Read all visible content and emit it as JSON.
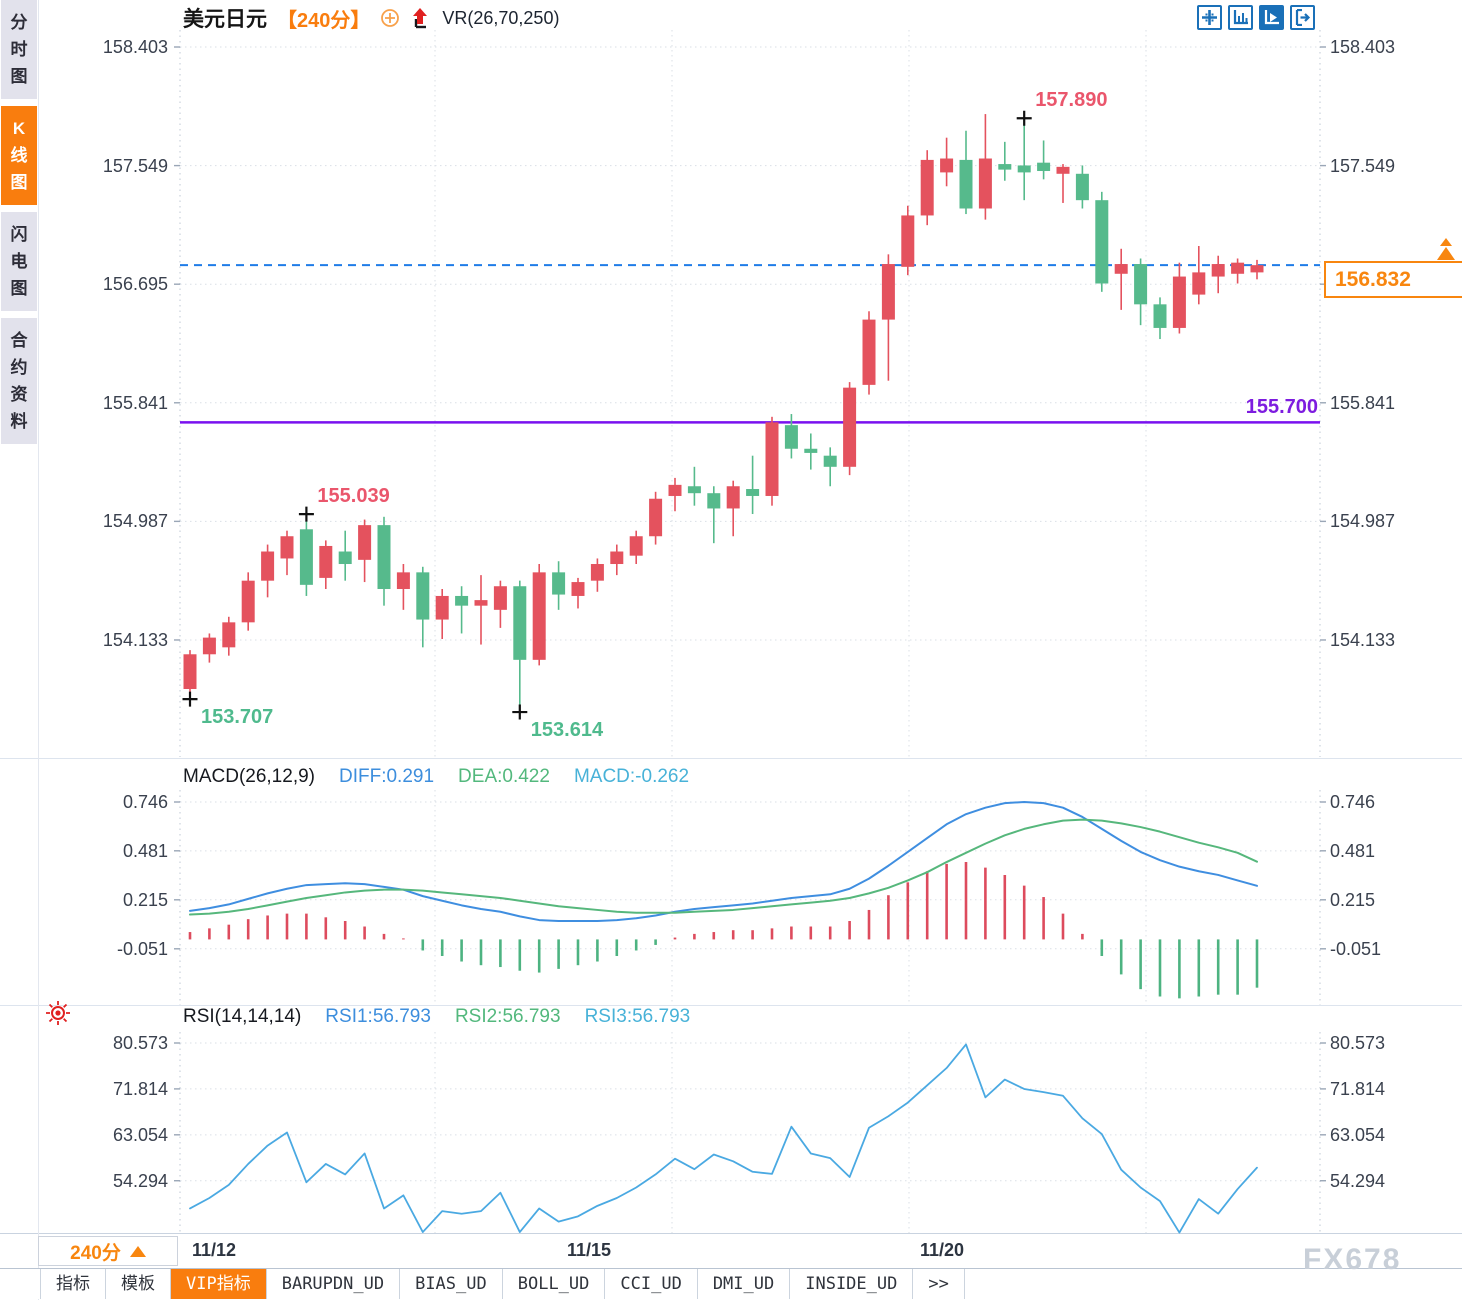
{
  "sidebar": {
    "items": [
      {
        "label": "分时图",
        "active": false
      },
      {
        "label": "K线图",
        "active": true
      },
      {
        "label": "闪电图",
        "active": false
      },
      {
        "label": "合约资料",
        "active": false
      }
    ]
  },
  "header": {
    "symbol": "美元日元",
    "period": "【240分】",
    "overlay_indicator": "VR(26,70,250)"
  },
  "toolbar": {
    "icons": [
      "crosshair-icon",
      "axis-bars-icon",
      "axis-play-icon",
      "exit-right-icon"
    ]
  },
  "chart_data": [
    {
      "type": "candlestick",
      "title": "美元日元 240分",
      "y_ticks": [
        "158.403",
        "157.549",
        "156.695",
        "155.841",
        "154.987",
        "154.133"
      ],
      "x_labels": [
        "11/12",
        "11/15",
        "11/20"
      ],
      "last_price": "156.832",
      "colors": {
        "up": "#e4525e",
        "down": "#56ba8c"
      },
      "hlines": [
        {
          "label": "155.700",
          "value": 155.7,
          "color": "#7a11ef",
          "style": "solid"
        },
        {
          "label": "156.832",
          "value": 156.832,
          "color": "#1f7ce8",
          "style": "dashed"
        }
      ],
      "markers": [
        {
          "candle": 0,
          "side": "low",
          "label": "153.707"
        },
        {
          "candle": 6,
          "side": "high",
          "label": "155.039"
        },
        {
          "candle": 17,
          "side": "low",
          "label": "153.614"
        },
        {
          "candle": 43,
          "side": "high",
          "label": "157.890"
        }
      ],
      "candles": [
        [
          153.78,
          154.06,
          153.707,
          154.03
        ],
        [
          154.03,
          154.18,
          153.97,
          154.15
        ],
        [
          154.08,
          154.3,
          154.02,
          154.26
        ],
        [
          154.26,
          154.62,
          154.2,
          154.56
        ],
        [
          154.56,
          154.82,
          154.44,
          154.77
        ],
        [
          154.72,
          154.92,
          154.6,
          154.88
        ],
        [
          154.93,
          155.039,
          154.45,
          154.53
        ],
        [
          154.58,
          154.85,
          154.5,
          154.81
        ],
        [
          154.77,
          154.92,
          154.56,
          154.68
        ],
        [
          154.71,
          155.0,
          154.55,
          154.96
        ],
        [
          154.96,
          155.02,
          154.38,
          154.5
        ],
        [
          154.5,
          154.68,
          154.35,
          154.62
        ],
        [
          154.62,
          154.66,
          154.08,
          154.28
        ],
        [
          154.28,
          154.5,
          154.14,
          154.45
        ],
        [
          154.45,
          154.52,
          154.18,
          154.38
        ],
        [
          154.38,
          154.6,
          154.1,
          154.42
        ],
        [
          154.35,
          154.56,
          154.22,
          154.52
        ],
        [
          154.52,
          154.56,
          153.614,
          153.99
        ],
        [
          153.99,
          154.68,
          153.95,
          154.62
        ],
        [
          154.62,
          154.7,
          154.35,
          154.46
        ],
        [
          154.45,
          154.58,
          154.36,
          154.55
        ],
        [
          154.56,
          154.72,
          154.48,
          154.68
        ],
        [
          154.68,
          154.82,
          154.6,
          154.77
        ],
        [
          154.74,
          154.92,
          154.68,
          154.88
        ],
        [
          154.88,
          155.2,
          154.82,
          155.15
        ],
        [
          155.17,
          155.3,
          155.06,
          155.25
        ],
        [
          155.24,
          155.38,
          155.1,
          155.19
        ],
        [
          155.19,
          155.24,
          154.83,
          155.08
        ],
        [
          155.08,
          155.28,
          154.88,
          155.24
        ],
        [
          155.22,
          155.46,
          155.04,
          155.17
        ],
        [
          155.17,
          155.74,
          155.1,
          155.7
        ],
        [
          155.68,
          155.76,
          155.44,
          155.51
        ],
        [
          155.51,
          155.62,
          155.36,
          155.48
        ],
        [
          155.46,
          155.52,
          155.24,
          155.38
        ],
        [
          155.38,
          155.99,
          155.32,
          155.95
        ],
        [
          155.97,
          156.5,
          155.9,
          156.44
        ],
        [
          156.44,
          156.91,
          156.0,
          156.84
        ],
        [
          156.82,
          157.26,
          156.76,
          157.19
        ],
        [
          157.19,
          157.66,
          157.12,
          157.59
        ],
        [
          157.5,
          157.75,
          157.4,
          157.6
        ],
        [
          157.59,
          157.8,
          157.2,
          157.24
        ],
        [
          157.24,
          157.92,
          157.16,
          157.6
        ],
        [
          157.56,
          157.72,
          157.44,
          157.52
        ],
        [
          157.55,
          157.89,
          157.3,
          157.5
        ],
        [
          157.57,
          157.73,
          157.45,
          157.51
        ],
        [
          157.49,
          157.56,
          157.28,
          157.54
        ],
        [
          157.49,
          157.55,
          157.24,
          157.3
        ],
        [
          157.3,
          157.36,
          156.64,
          156.7
        ],
        [
          156.77,
          156.95,
          156.51,
          156.84
        ],
        [
          156.84,
          156.88,
          156.4,
          156.55
        ],
        [
          156.55,
          156.6,
          156.3,
          156.38
        ],
        [
          156.38,
          156.85,
          156.34,
          156.75
        ],
        [
          156.62,
          156.97,
          156.55,
          156.78
        ],
        [
          156.75,
          156.9,
          156.63,
          156.84
        ],
        [
          156.77,
          156.88,
          156.7,
          156.85
        ],
        [
          156.78,
          156.87,
          156.73,
          156.832
        ]
      ]
    },
    {
      "type": "macd",
      "label": "MACD(26,12,9)",
      "diff_label": "DIFF:0.291",
      "dea_label": "DEA:0.422",
      "macd_label": "MACD:-0.262",
      "y_ticks": [
        "0.746",
        "0.481",
        "0.215",
        "-0.051"
      ],
      "colors": {
        "diff": "#3f8ee0",
        "dea": "#56b77c",
        "hist_up": "#dd4b5d",
        "hist_down": "#4db381"
      },
      "diff": [
        0.155,
        0.17,
        0.19,
        0.22,
        0.25,
        0.275,
        0.295,
        0.3,
        0.305,
        0.3,
        0.285,
        0.27,
        0.235,
        0.21,
        0.185,
        0.165,
        0.15,
        0.125,
        0.105,
        0.1,
        0.1,
        0.1,
        0.105,
        0.115,
        0.13,
        0.15,
        0.165,
        0.175,
        0.185,
        0.195,
        0.21,
        0.225,
        0.235,
        0.245,
        0.275,
        0.33,
        0.4,
        0.475,
        0.55,
        0.625,
        0.68,
        0.715,
        0.74,
        0.746,
        0.74,
        0.715,
        0.665,
        0.6,
        0.535,
        0.475,
        0.43,
        0.395,
        0.37,
        0.35,
        0.32,
        0.291
      ],
      "dea": [
        0.135,
        0.14,
        0.15,
        0.165,
        0.185,
        0.205,
        0.225,
        0.24,
        0.255,
        0.265,
        0.27,
        0.27,
        0.265,
        0.255,
        0.245,
        0.235,
        0.225,
        0.21,
        0.195,
        0.18,
        0.17,
        0.16,
        0.15,
        0.145,
        0.145,
        0.145,
        0.15,
        0.155,
        0.16,
        0.17,
        0.18,
        0.19,
        0.2,
        0.21,
        0.225,
        0.25,
        0.28,
        0.32,
        0.365,
        0.42,
        0.47,
        0.52,
        0.565,
        0.6,
        0.625,
        0.645,
        0.65,
        0.645,
        0.63,
        0.61,
        0.585,
        0.555,
        0.525,
        0.5,
        0.47,
        0.422
      ],
      "hist": [
        0.04,
        0.06,
        0.08,
        0.11,
        0.13,
        0.14,
        0.14,
        0.12,
        0.1,
        0.07,
        0.03,
        0.0,
        -0.06,
        -0.09,
        -0.12,
        -0.14,
        -0.15,
        -0.17,
        -0.18,
        -0.16,
        -0.14,
        -0.12,
        -0.09,
        -0.06,
        -0.03,
        0.01,
        0.03,
        0.04,
        0.05,
        0.05,
        0.06,
        0.07,
        0.07,
        0.07,
        0.1,
        0.16,
        0.24,
        0.31,
        0.37,
        0.41,
        0.42,
        0.39,
        0.35,
        0.292,
        0.23,
        0.14,
        0.03,
        -0.09,
        -0.19,
        -0.27,
        -0.31,
        -0.32,
        -0.31,
        -0.3,
        -0.3,
        -0.262
      ]
    },
    {
      "type": "line",
      "label": "RSI(14,14,14)",
      "rsi1_label": "RSI1:56.793",
      "rsi2_label": "RSI2:56.793",
      "rsi3_label": "RSI3:56.793",
      "y_ticks": [
        "80.573",
        "71.814",
        "63.054",
        "54.294"
      ],
      "colors": {
        "line": "#4aa9e2"
      },
      "values": [
        49.0,
        51.0,
        53.5,
        57.5,
        61.0,
        63.5,
        54.0,
        57.5,
        55.5,
        59.5,
        49.0,
        51.5,
        44.5,
        48.5,
        48.0,
        48.5,
        52.0,
        44.5,
        49.0,
        46.5,
        47.5,
        49.5,
        51.0,
        53.0,
        55.5,
        58.5,
        56.5,
        59.3,
        58.0,
        56.0,
        55.6,
        64.6,
        59.5,
        58.6,
        55.0,
        64.4,
        66.6,
        69.2,
        72.5,
        75.8,
        80.3,
        70.2,
        73.6,
        71.8,
        71.2,
        70.5,
        66.2,
        63.2,
        56.4,
        53.0,
        50.4,
        44.4,
        50.8,
        48.0,
        52.7,
        56.79
      ]
    }
  ],
  "footer": {
    "period_button": "240分",
    "tabs": [
      {
        "label": "指标",
        "active": false
      },
      {
        "label": "模板",
        "active": false
      },
      {
        "label": "VIP指标",
        "active": true
      },
      {
        "label": "BARUPDN_UD",
        "active": false
      },
      {
        "label": "BIAS_UD",
        "active": false
      },
      {
        "label": "BOLL_UD",
        "active": false
      },
      {
        "label": "CCI_UD",
        "active": false
      },
      {
        "label": "DMI_UD",
        "active": false
      },
      {
        "label": "INSIDE_UD",
        "active": false
      },
      {
        "label": ">>",
        "active": false
      }
    ],
    "watermark": "FX678"
  }
}
